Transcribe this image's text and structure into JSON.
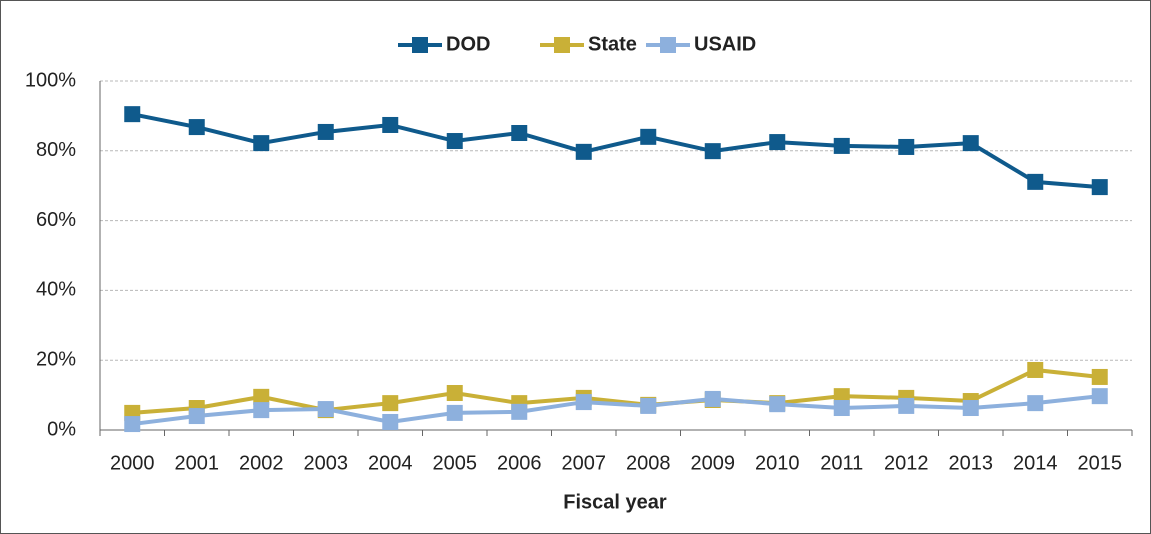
{
  "chart_data": {
    "type": "line",
    "x_label": "Fiscal year",
    "categories": [
      "2000",
      "2001",
      "2002",
      "2003",
      "2004",
      "2005",
      "2006",
      "2007",
      "2008",
      "2009",
      "2010",
      "2011",
      "2012",
      "2013",
      "2014",
      "2015"
    ],
    "series": [
      {
        "name": "DOD",
        "color": "#0f5a8c",
        "values": [
          90.5,
          86.8,
          82.2,
          85.4,
          87.4,
          82.8,
          85.1,
          79.7,
          84.0,
          79.9,
          82.5,
          81.4,
          81.1,
          82.2,
          71.1,
          69.6
        ]
      },
      {
        "name": "State",
        "color": "#c9b037",
        "values": [
          4.9,
          6.3,
          9.5,
          5.7,
          7.7,
          10.6,
          7.7,
          9.2,
          7.2,
          8.6,
          7.7,
          9.7,
          9.2,
          8.3,
          17.2,
          15.2
        ]
      },
      {
        "name": "USAID",
        "color": "#8db0dd",
        "values": [
          1.7,
          4.0,
          5.7,
          6.0,
          2.3,
          4.9,
          5.2,
          8.0,
          6.9,
          8.9,
          7.4,
          6.3,
          6.9,
          6.3,
          7.7,
          9.7
        ]
      }
    ],
    "ylim": [
      0,
      100
    ],
    "yticks": [
      {
        "value": 0,
        "label": "0%"
      },
      {
        "value": 20,
        "label": "20%"
      },
      {
        "value": 40,
        "label": "40%"
      },
      {
        "value": 60,
        "label": "60%"
      },
      {
        "value": 80,
        "label": "80%"
      },
      {
        "value": 100,
        "label": "100%"
      }
    ],
    "grid": true,
    "legend": "top"
  }
}
